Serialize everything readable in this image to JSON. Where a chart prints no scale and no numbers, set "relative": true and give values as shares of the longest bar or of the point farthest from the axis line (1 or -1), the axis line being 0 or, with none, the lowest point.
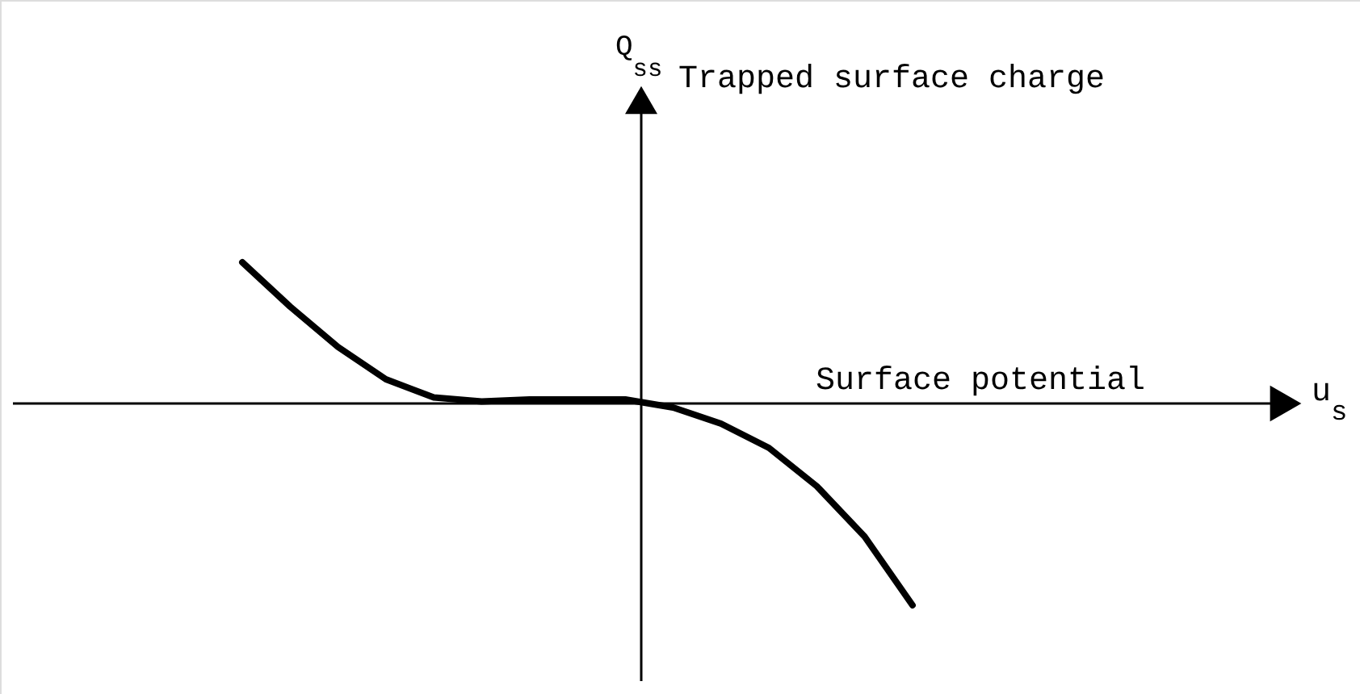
{
  "chart_data": {
    "type": "line",
    "relative": true,
    "annotations": [
      "Q$_{ss}$",
      "Trapped surface charge",
      "Surface potential",
      "u$_{s}$"
    ],
    "categories": [
      null,
      null,
      null,
      null,
      null,
      null,
      null,
      null,
      null,
      null,
      null,
      null,
      null,
      null,
      null
    ],
    "series": [
      {
        "color": "#000000",
        "values": [
          0.7,
          0.48,
          0.28,
          0.12,
          0.03,
          0.01,
          0.02,
          0.02,
          0.02,
          -0.02,
          -0.1,
          -0.22,
          -0.41,
          -0.66,
          -1.0
        ]
      }
    ],
    "grid": false,
    "marker": "none",
    "line_style": "solid"
  }
}
